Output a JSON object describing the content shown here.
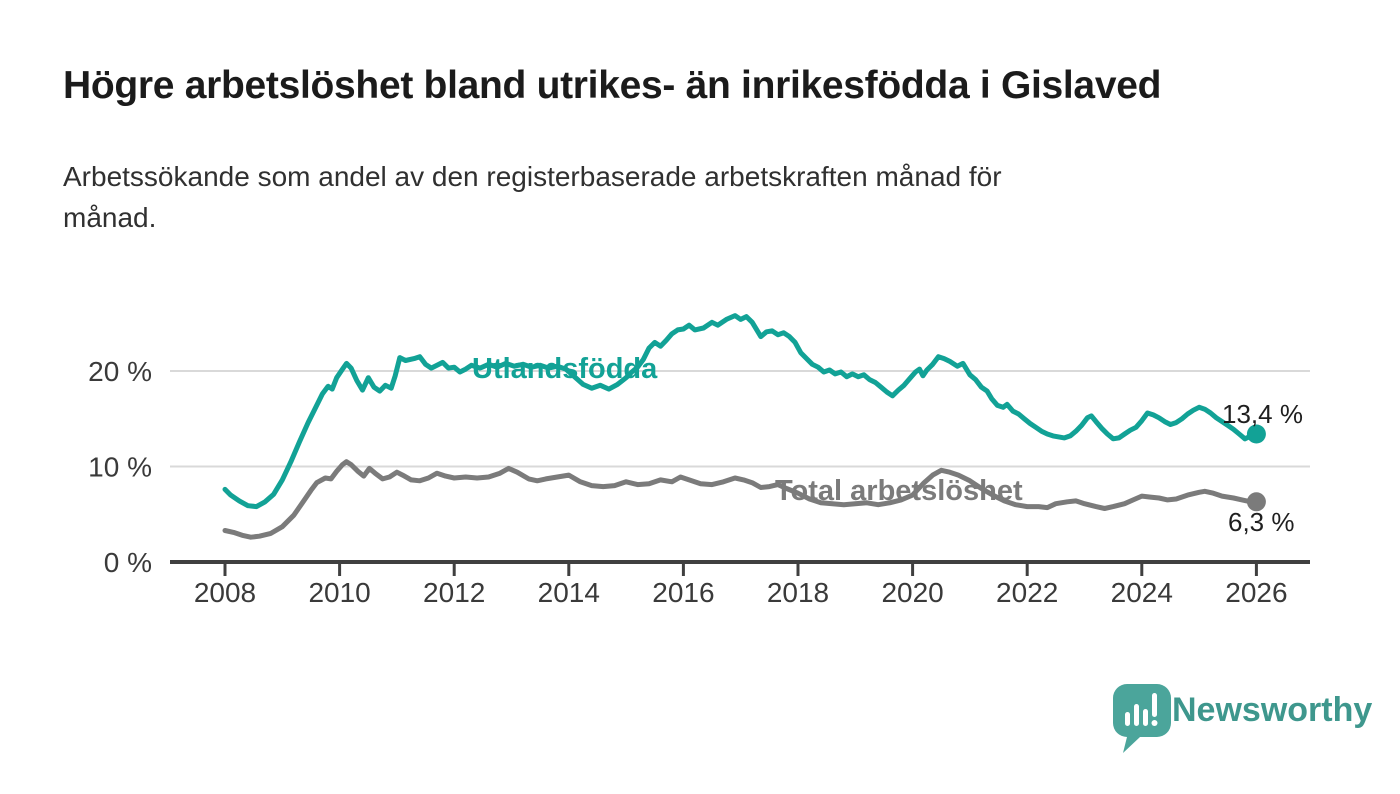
{
  "title": "Högre arbetslöshet bland utrikes- än inrikesfödda i Gislaved",
  "subtitle": "Arbetssökande som andel av den registerbaserade arbetskraften månad för månad.",
  "subtitle_lines": [
    "Arbetssökande som andel av den registerbaserade arbetskraften månad för",
    "månad."
  ],
  "footer": {
    "brand": "Newsworthy",
    "logo_icon": "speech-bubble-bar-chart-icon",
    "bubble_color": "#4ba59b",
    "brand_text_color": "#3e978d"
  },
  "colors": {
    "foreign_born_line": "#12a296",
    "total_line": "#7b7b7b",
    "gridline": "#d9d9d9",
    "axis": "#404040",
    "axis_text": "#3a3a3a",
    "value_label_text": "#1f1f1f"
  },
  "chart_data": {
    "type": "line",
    "title": "Högre arbetslöshet bland utrikes- än inrikesfödda i Gislaved",
    "subtitle": "Arbetssökande som andel av den registerbaserade arbetskraften månad för månad.",
    "x_axis": {
      "label": "",
      "ticks": [
        2008,
        2010,
        2012,
        2014,
        2016,
        2018,
        2020,
        2022,
        2024,
        2026
      ],
      "range": [
        2007.0,
        2026.9
      ]
    },
    "y_axis": {
      "label": "",
      "unit": "%",
      "ticks": [
        {
          "value": 20,
          "label": "20 %"
        },
        {
          "value": 10,
          "label": "10 %"
        },
        {
          "value": 0,
          "label": "0 %"
        }
      ],
      "gridlines": [
        20,
        10
      ],
      "range": [
        0,
        27.5
      ]
    },
    "legend_position": "inline-labels",
    "grid": true,
    "series": [
      {
        "name": "Utlandsfödda",
        "color": "#12a296",
        "end_label": "13,4 %",
        "end_value": 13.4,
        "points": [
          [
            2008.0,
            7.6
          ],
          [
            2008.1,
            7.0
          ],
          [
            2008.25,
            6.4
          ],
          [
            2008.4,
            5.9
          ],
          [
            2008.55,
            5.8
          ],
          [
            2008.7,
            6.3
          ],
          [
            2008.85,
            7.1
          ],
          [
            2009.0,
            8.6
          ],
          [
            2009.15,
            10.5
          ],
          [
            2009.3,
            12.6
          ],
          [
            2009.45,
            14.6
          ],
          [
            2009.6,
            16.4
          ],
          [
            2009.7,
            17.6
          ],
          [
            2009.8,
            18.4
          ],
          [
            2009.87,
            18.1
          ],
          [
            2009.95,
            19.3
          ],
          [
            2010.05,
            20.2
          ],
          [
            2010.12,
            20.8
          ],
          [
            2010.2,
            20.3
          ],
          [
            2010.3,
            19.0
          ],
          [
            2010.4,
            18.0
          ],
          [
            2010.5,
            19.3
          ],
          [
            2010.6,
            18.3
          ],
          [
            2010.7,
            17.9
          ],
          [
            2010.8,
            18.5
          ],
          [
            2010.9,
            18.2
          ],
          [
            2010.97,
            19.5
          ],
          [
            2011.05,
            21.4
          ],
          [
            2011.15,
            21.1
          ],
          [
            2011.3,
            21.3
          ],
          [
            2011.4,
            21.5
          ],
          [
            2011.5,
            20.7
          ],
          [
            2011.6,
            20.3
          ],
          [
            2011.7,
            20.6
          ],
          [
            2011.8,
            20.9
          ],
          [
            2011.9,
            20.3
          ],
          [
            2012.0,
            20.4
          ],
          [
            2012.1,
            19.9
          ],
          [
            2012.2,
            20.2
          ],
          [
            2012.3,
            20.6
          ],
          [
            2012.45,
            20.3
          ],
          [
            2012.6,
            20.7
          ],
          [
            2012.75,
            20.4
          ],
          [
            2012.9,
            20.8
          ],
          [
            2013.05,
            20.5
          ],
          [
            2013.2,
            20.7
          ],
          [
            2013.35,
            20.4
          ],
          [
            2013.5,
            20.6
          ],
          [
            2013.65,
            20.3
          ],
          [
            2013.8,
            20.5
          ],
          [
            2013.95,
            20.2
          ],
          [
            2014.1,
            19.4
          ],
          [
            2014.25,
            18.6
          ],
          [
            2014.4,
            18.2
          ],
          [
            2014.55,
            18.5
          ],
          [
            2014.7,
            18.1
          ],
          [
            2014.85,
            18.6
          ],
          [
            2015.0,
            19.3
          ],
          [
            2015.1,
            19.9
          ],
          [
            2015.2,
            20.4
          ],
          [
            2015.3,
            21.2
          ],
          [
            2015.4,
            22.4
          ],
          [
            2015.5,
            23.0
          ],
          [
            2015.6,
            22.6
          ],
          [
            2015.7,
            23.2
          ],
          [
            2015.8,
            23.9
          ],
          [
            2015.9,
            24.3
          ],
          [
            2016.0,
            24.4
          ],
          [
            2016.1,
            24.8
          ],
          [
            2016.2,
            24.3
          ],
          [
            2016.35,
            24.5
          ],
          [
            2016.5,
            25.1
          ],
          [
            2016.6,
            24.8
          ],
          [
            2016.75,
            25.4
          ],
          [
            2016.9,
            25.8
          ],
          [
            2017.0,
            25.4
          ],
          [
            2017.1,
            25.7
          ],
          [
            2017.2,
            25.1
          ],
          [
            2017.35,
            23.6
          ],
          [
            2017.45,
            24.1
          ],
          [
            2017.55,
            24.2
          ],
          [
            2017.65,
            23.8
          ],
          [
            2017.75,
            24.0
          ],
          [
            2017.85,
            23.6
          ],
          [
            2017.95,
            23.0
          ],
          [
            2018.05,
            21.9
          ],
          [
            2018.15,
            21.3
          ],
          [
            2018.25,
            20.7
          ],
          [
            2018.35,
            20.4
          ],
          [
            2018.45,
            19.9
          ],
          [
            2018.55,
            20.1
          ],
          [
            2018.65,
            19.7
          ],
          [
            2018.75,
            19.9
          ],
          [
            2018.85,
            19.4
          ],
          [
            2018.95,
            19.7
          ],
          [
            2019.05,
            19.4
          ],
          [
            2019.15,
            19.6
          ],
          [
            2019.25,
            19.1
          ],
          [
            2019.35,
            18.8
          ],
          [
            2019.45,
            18.3
          ],
          [
            2019.55,
            17.8
          ],
          [
            2019.65,
            17.4
          ],
          [
            2019.75,
            18.0
          ],
          [
            2019.85,
            18.5
          ],
          [
            2019.95,
            19.2
          ],
          [
            2020.05,
            19.9
          ],
          [
            2020.12,
            20.2
          ],
          [
            2020.18,
            19.5
          ],
          [
            2020.25,
            20.1
          ],
          [
            2020.35,
            20.7
          ],
          [
            2020.45,
            21.5
          ],
          [
            2020.55,
            21.3
          ],
          [
            2020.65,
            21.0
          ],
          [
            2020.78,
            20.5
          ],
          [
            2020.88,
            20.8
          ],
          [
            2021.0,
            19.6
          ],
          [
            2021.1,
            19.1
          ],
          [
            2021.2,
            18.3
          ],
          [
            2021.3,
            17.9
          ],
          [
            2021.38,
            17.1
          ],
          [
            2021.48,
            16.4
          ],
          [
            2021.58,
            16.2
          ],
          [
            2021.65,
            16.5
          ],
          [
            2021.75,
            15.8
          ],
          [
            2021.85,
            15.5
          ],
          [
            2021.95,
            15.0
          ],
          [
            2022.05,
            14.5
          ],
          [
            2022.15,
            14.1
          ],
          [
            2022.25,
            13.7
          ],
          [
            2022.35,
            13.4
          ],
          [
            2022.45,
            13.2
          ],
          [
            2022.55,
            13.1
          ],
          [
            2022.65,
            13.0
          ],
          [
            2022.75,
            13.2
          ],
          [
            2022.85,
            13.7
          ],
          [
            2022.95,
            14.3
          ],
          [
            2023.05,
            15.1
          ],
          [
            2023.12,
            15.3
          ],
          [
            2023.2,
            14.7
          ],
          [
            2023.3,
            14.0
          ],
          [
            2023.4,
            13.4
          ],
          [
            2023.5,
            12.9
          ],
          [
            2023.6,
            13.0
          ],
          [
            2023.7,
            13.4
          ],
          [
            2023.8,
            13.8
          ],
          [
            2023.9,
            14.1
          ],
          [
            2024.0,
            14.8
          ],
          [
            2024.1,
            15.6
          ],
          [
            2024.2,
            15.4
          ],
          [
            2024.3,
            15.1
          ],
          [
            2024.4,
            14.7
          ],
          [
            2024.5,
            14.4
          ],
          [
            2024.6,
            14.6
          ],
          [
            2024.7,
            15.0
          ],
          [
            2024.8,
            15.5
          ],
          [
            2024.9,
            15.9
          ],
          [
            2025.0,
            16.2
          ],
          [
            2025.1,
            16.0
          ],
          [
            2025.2,
            15.6
          ],
          [
            2025.3,
            15.1
          ],
          [
            2025.4,
            14.7
          ],
          [
            2025.5,
            14.3
          ],
          [
            2025.6,
            13.9
          ],
          [
            2025.7,
            13.4
          ],
          [
            2025.8,
            12.9
          ],
          [
            2025.87,
            13.1
          ],
          [
            2025.95,
            12.8
          ],
          [
            2026.0,
            13.4
          ]
        ]
      },
      {
        "name": "Total arbetslöshet",
        "color": "#7b7b7b",
        "end_label": "6,3 %",
        "end_value": 6.3,
        "points": [
          [
            2008.0,
            3.3
          ],
          [
            2008.15,
            3.1
          ],
          [
            2008.3,
            2.8
          ],
          [
            2008.45,
            2.6
          ],
          [
            2008.6,
            2.7
          ],
          [
            2008.8,
            3.0
          ],
          [
            2009.0,
            3.7
          ],
          [
            2009.2,
            4.9
          ],
          [
            2009.35,
            6.2
          ],
          [
            2009.5,
            7.5
          ],
          [
            2009.6,
            8.3
          ],
          [
            2009.75,
            8.8
          ],
          [
            2009.85,
            8.7
          ],
          [
            2009.95,
            9.5
          ],
          [
            2010.05,
            10.2
          ],
          [
            2010.12,
            10.5
          ],
          [
            2010.2,
            10.2
          ],
          [
            2010.32,
            9.5
          ],
          [
            2010.42,
            9.0
          ],
          [
            2010.52,
            9.8
          ],
          [
            2010.62,
            9.3
          ],
          [
            2010.75,
            8.7
          ],
          [
            2010.87,
            8.9
          ],
          [
            2011.0,
            9.4
          ],
          [
            2011.1,
            9.1
          ],
          [
            2011.25,
            8.6
          ],
          [
            2011.4,
            8.5
          ],
          [
            2011.55,
            8.8
          ],
          [
            2011.7,
            9.3
          ],
          [
            2011.85,
            9.0
          ],
          [
            2012.0,
            8.8
          ],
          [
            2012.2,
            8.9
          ],
          [
            2012.4,
            8.8
          ],
          [
            2012.6,
            8.9
          ],
          [
            2012.8,
            9.3
          ],
          [
            2012.95,
            9.8
          ],
          [
            2013.1,
            9.4
          ],
          [
            2013.3,
            8.7
          ],
          [
            2013.45,
            8.5
          ],
          [
            2013.6,
            8.7
          ],
          [
            2013.8,
            8.9
          ],
          [
            2014.0,
            9.1
          ],
          [
            2014.2,
            8.4
          ],
          [
            2014.4,
            8.0
          ],
          [
            2014.6,
            7.9
          ],
          [
            2014.8,
            8.0
          ],
          [
            2015.0,
            8.4
          ],
          [
            2015.2,
            8.1
          ],
          [
            2015.4,
            8.2
          ],
          [
            2015.6,
            8.6
          ],
          [
            2015.8,
            8.4
          ],
          [
            2015.95,
            8.9
          ],
          [
            2016.1,
            8.6
          ],
          [
            2016.3,
            8.2
          ],
          [
            2016.5,
            8.1
          ],
          [
            2016.7,
            8.4
          ],
          [
            2016.9,
            8.8
          ],
          [
            2017.05,
            8.6
          ],
          [
            2017.2,
            8.3
          ],
          [
            2017.35,
            7.8
          ],
          [
            2017.5,
            7.9
          ],
          [
            2017.65,
            8.1
          ],
          [
            2017.8,
            7.7
          ],
          [
            2018.0,
            7.2
          ],
          [
            2018.2,
            6.6
          ],
          [
            2018.4,
            6.2
          ],
          [
            2018.6,
            6.1
          ],
          [
            2018.8,
            6.0
          ],
          [
            2019.0,
            6.1
          ],
          [
            2019.2,
            6.2
          ],
          [
            2019.4,
            6.0
          ],
          [
            2019.6,
            6.2
          ],
          [
            2019.8,
            6.5
          ],
          [
            2020.0,
            7.0
          ],
          [
            2020.2,
            8.3
          ],
          [
            2020.35,
            9.1
          ],
          [
            2020.5,
            9.6
          ],
          [
            2020.65,
            9.4
          ],
          [
            2020.8,
            9.1
          ],
          [
            2021.0,
            8.5
          ],
          [
            2021.2,
            7.7
          ],
          [
            2021.4,
            7.0
          ],
          [
            2021.6,
            6.4
          ],
          [
            2021.8,
            6.0
          ],
          [
            2022.0,
            5.8
          ],
          [
            2022.2,
            5.8
          ],
          [
            2022.35,
            5.7
          ],
          [
            2022.5,
            6.1
          ],
          [
            2022.7,
            6.3
          ],
          [
            2022.85,
            6.4
          ],
          [
            2023.0,
            6.1
          ],
          [
            2023.2,
            5.8
          ],
          [
            2023.35,
            5.6
          ],
          [
            2023.5,
            5.8
          ],
          [
            2023.7,
            6.1
          ],
          [
            2023.85,
            6.5
          ],
          [
            2024.0,
            6.9
          ],
          [
            2024.15,
            6.8
          ],
          [
            2024.3,
            6.7
          ],
          [
            2024.45,
            6.5
          ],
          [
            2024.6,
            6.6
          ],
          [
            2024.8,
            7.0
          ],
          [
            2025.0,
            7.3
          ],
          [
            2025.1,
            7.4
          ],
          [
            2025.25,
            7.2
          ],
          [
            2025.4,
            6.9
          ],
          [
            2025.6,
            6.7
          ],
          [
            2025.75,
            6.5
          ],
          [
            2025.9,
            6.3
          ],
          [
            2026.0,
            6.3
          ]
        ]
      }
    ]
  }
}
